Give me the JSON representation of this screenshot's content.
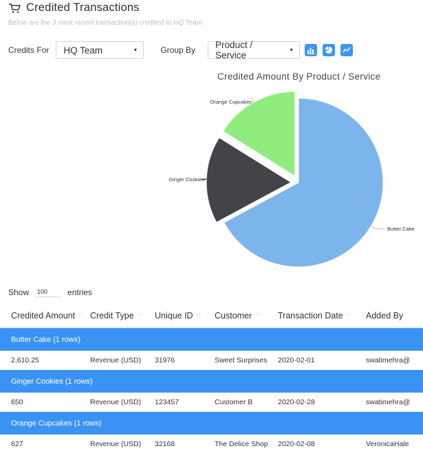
{
  "header": {
    "title": "Credited Transactions",
    "subtitle": "Below are the 3 most recent transaction(s) credited to HQ Team."
  },
  "filters": {
    "credits_for_label": "Credits For",
    "credits_for_value": "HQ Team",
    "group_by_label": "Group By",
    "group_by_value": "Product / Service",
    "view_buttons": [
      "bar-chart-icon",
      "pie-chart-icon",
      "line-chart-icon"
    ],
    "active_view": "pie-chart-icon"
  },
  "chart_data": {
    "type": "pie",
    "title": "Credited Amount By Product / Service",
    "categories": [
      "Butter Cake",
      "Ginger Cookies",
      "Orange Cupcakes"
    ],
    "values": [
      2610.25,
      650,
      627
    ],
    "colors": [
      "#7cb5ec",
      "#434348",
      "#90ed7d"
    ],
    "exploded": [
      "Ginger Cookies",
      "Orange Cupcakes"
    ]
  },
  "table": {
    "show_label": "Show",
    "entries_label": "entries",
    "page_length": "100",
    "columns": [
      "Credited Amount",
      "Credit Type",
      "Unique ID",
      "Customer",
      "Transaction Date",
      "Added By"
    ],
    "groups": [
      {
        "label": "Butter Cake (1 rows)",
        "rows": [
          [
            "2,610.25",
            "Revenue (USD)",
            "31976",
            "Sweet Surprises",
            "2020-02-01",
            "swatimehra@"
          ]
        ]
      },
      {
        "label": "Ginger Cookies (1 rows)",
        "rows": [
          [
            "650",
            "Revenue (USD)",
            "123457",
            "Customer B",
            "2020-02-28",
            "swatimehra@"
          ]
        ]
      },
      {
        "label": "Orange Cupcakes (1 rows)",
        "rows": [
          [
            "627",
            "Revenue (USD)",
            "32168",
            "The Delice Shop",
            "2020-02-08",
            "VeronicaHale"
          ]
        ]
      }
    ]
  },
  "colors": {
    "accent": "#3d97f5",
    "group_row": "#3a93f3",
    "subtitle": "#b7c0c8"
  }
}
